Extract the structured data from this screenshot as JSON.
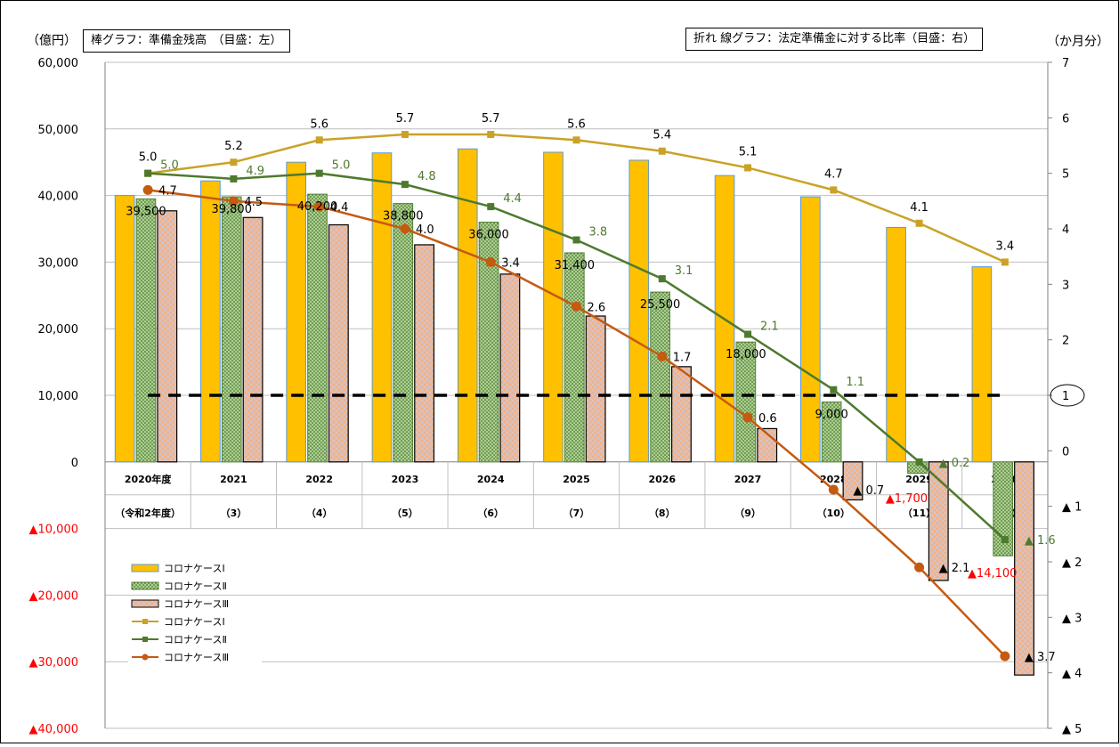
{
  "chart_data": {
    "type": "bar+line",
    "left_axis_title": "（億円）",
    "right_axis_title": "（か月分）",
    "left_legend_box": "棒グラフ：準備金残高　（目盛：左）",
    "right_legend_box": "折れ 線グラフ：法定準備金に対する比率（目盛：右）",
    "left_axis": {
      "ylim": [
        -40000,
        60000
      ],
      "tick_values": [
        60000,
        50000,
        40000,
        30000,
        20000,
        10000,
        0,
        -10000,
        -20000,
        -30000,
        -40000
      ],
      "tick_labels": [
        "60,000",
        "50,000",
        "40,000",
        "30,000",
        "20,000",
        "10,000",
        "0",
        "▲10,000",
        "▲20,000",
        "▲30,000",
        "▲40,000"
      ]
    },
    "right_axis": {
      "ylim": [
        -5,
        7
      ],
      "tick_values": [
        7,
        6,
        5,
        4,
        3,
        2,
        1,
        0,
        -1,
        -2,
        -3,
        -4,
        -5
      ],
      "tick_labels": [
        "7",
        "6",
        "5",
        "4",
        "3",
        "2",
        "1",
        "0",
        "▲ 1",
        "▲ 2",
        "▲ 3",
        "▲ 4",
        "▲ 5"
      ],
      "circled_tick": "1"
    },
    "categories": [
      "2020年度",
      "2021",
      "2022",
      "2023",
      "2024",
      "2025",
      "2026",
      "2027",
      "2028",
      "2029",
      "2030"
    ],
    "sub_categories": [
      "（令和2年度）",
      "（3）",
      "（4）",
      "（5）",
      "（6）",
      "（7）",
      "（8）",
      "（9）",
      "（10）",
      "（11）",
      "（12）"
    ],
    "bar_series": [
      {
        "name": "コロナケースⅠ",
        "color": "#FFC000",
        "stroke": "#5B9BD5",
        "pattern": "solid",
        "values": [
          40000,
          42200,
          45000,
          46400,
          47000,
          46500,
          45300,
          43000,
          39800,
          35200,
          29300
        ]
      },
      {
        "name": "コロナケースⅡ",
        "color": "#A9D18E",
        "stroke": "#548235",
        "pattern": "dots",
        "values": [
          39500,
          39800,
          40200,
          38800,
          36000,
          31400,
          25500,
          18000,
          9000,
          -1700,
          -14100
        ]
      },
      {
        "name": "コロナケースⅢ",
        "color": "#F4B183",
        "stroke": "#000000",
        "pattern": "crosshatch",
        "values": [
          37700,
          36700,
          35600,
          32600,
          28200,
          21900,
          14300,
          5000,
          -5700,
          -17800,
          -32000
        ]
      }
    ],
    "bar_labels": [
      {
        "series": 1,
        "index": 0,
        "text": "39,500",
        "color": "#000000"
      },
      {
        "series": 1,
        "index": 1,
        "text": "39,800",
        "color": "#000000"
      },
      {
        "series": 1,
        "index": 2,
        "text": "40,200",
        "color": "#000000"
      },
      {
        "series": 1,
        "index": 3,
        "text": "38,800",
        "color": "#000000"
      },
      {
        "series": 1,
        "index": 4,
        "text": "36,000",
        "color": "#000000"
      },
      {
        "series": 1,
        "index": 5,
        "text": "31,400",
        "color": "#000000"
      },
      {
        "series": 1,
        "index": 6,
        "text": "25,500",
        "color": "#000000"
      },
      {
        "series": 1,
        "index": 7,
        "text": "18,000",
        "color": "#000000"
      },
      {
        "series": 1,
        "index": 8,
        "text": "9,000",
        "color": "#000000"
      },
      {
        "series": 1,
        "index": 9,
        "text": "▲1,700",
        "color": "#FF0000"
      },
      {
        "series": 1,
        "index": 10,
        "text": "▲14,100",
        "color": "#FF0000"
      }
    ],
    "line_series": [
      {
        "name": "コロナケースⅠ",
        "color": "#C9A227",
        "marker": "square",
        "values": [
          5.0,
          5.2,
          5.6,
          5.7,
          5.7,
          5.6,
          5.4,
          5.1,
          4.7,
          4.1,
          3.4
        ],
        "labels": [
          "5.0",
          "5.2",
          "5.6",
          "5.7",
          "5.7",
          "5.6",
          "5.4",
          "5.1",
          "4.7",
          "4.1",
          "3.4"
        ]
      },
      {
        "name": "コロナケースⅡ",
        "color": "#4E7A2E",
        "marker": "square",
        "values": [
          5.0,
          4.9,
          5.0,
          4.8,
          4.4,
          3.8,
          3.1,
          2.1,
          1.1,
          -0.2,
          -1.6
        ],
        "labels": [
          "5.0",
          "4.9",
          "5.0",
          "4.8",
          "4.4",
          "3.8",
          "3.1",
          "2.1",
          "1.1",
          "▲ 0.2",
          "▲ 1.6"
        ]
      },
      {
        "name": "コロナケースⅢ",
        "color": "#C55A11",
        "marker": "circle",
        "values": [
          4.7,
          4.5,
          4.4,
          4.0,
          3.4,
          2.6,
          1.7,
          0.6,
          -0.7,
          -2.1,
          -3.7
        ],
        "labels": [
          "4.7",
          "4.5",
          "4.4",
          "4.0",
          "3.4",
          "2.6",
          "1.7",
          "0.6",
          "▲ 0.7",
          "▲ 2.1",
          "▲ 3.7"
        ]
      }
    ],
    "reference_line": {
      "right_value": 1,
      "style": "dashed",
      "color": "#000000"
    },
    "legend": [
      {
        "kind": "bar",
        "series": 0,
        "label": "コロナケースⅠ"
      },
      {
        "kind": "bar",
        "series": 1,
        "label": "コロナケースⅡ"
      },
      {
        "kind": "bar",
        "series": 2,
        "label": "コロナケースⅢ"
      },
      {
        "kind": "line",
        "series": 0,
        "label": "コロナケースⅠ"
      },
      {
        "kind": "line",
        "series": 1,
        "label": "コロナケースⅡ"
      },
      {
        "kind": "line",
        "series": 2,
        "label": "コロナケースⅢ"
      }
    ],
    "legend_position": "left-bottom",
    "grid": true,
    "colors": {
      "negative_label": "#FF0000",
      "gridline": "#BFBFBF"
    }
  }
}
